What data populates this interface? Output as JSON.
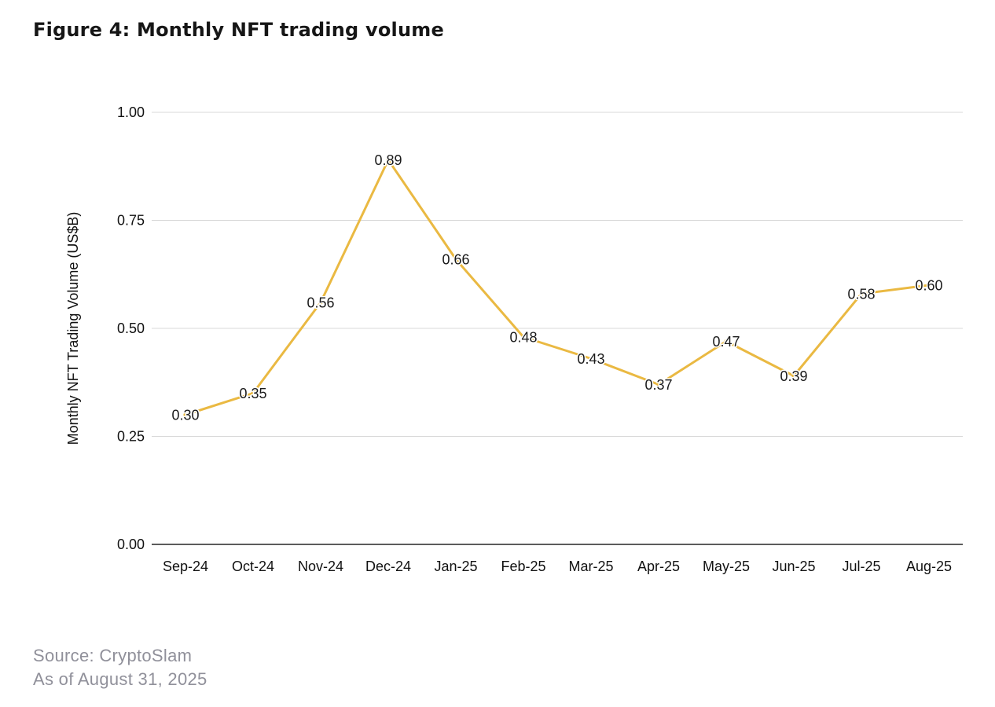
{
  "title": "Figure 4: Monthly NFT trading volume",
  "source": {
    "line1": "Source: CryptoSlam",
    "line2": "As of August 31, 2025"
  },
  "chart_data": {
    "type": "line",
    "title": "Figure 4: Monthly NFT trading volume",
    "categories": [
      "Sep-24",
      "Oct-24",
      "Nov-24",
      "Dec-24",
      "Jan-25",
      "Feb-25",
      "Mar-25",
      "Apr-25",
      "May-25",
      "Jun-25",
      "Jul-25",
      "Aug-25"
    ],
    "values": [
      0.3,
      0.35,
      0.56,
      0.89,
      0.66,
      0.48,
      0.43,
      0.37,
      0.47,
      0.39,
      0.58,
      0.6
    ],
    "data_labels": [
      "0.30",
      "0.35",
      "0.56",
      "0.89",
      "0.66",
      "0.48",
      "0.43",
      "0.37",
      "0.47",
      "0.39",
      "0.58",
      "0.60"
    ],
    "xlabel": "",
    "ylabel": "Monthly NFT Trading Volume (US$B)",
    "ylim": [
      0.0,
      1.0
    ],
    "yticks": [
      0.0,
      0.25,
      0.5,
      0.75,
      1.0
    ],
    "ytick_labels": [
      "0.00",
      "0.25",
      "0.50",
      "0.75",
      "1.00"
    ],
    "grid": true,
    "legend_position": "none",
    "line_color": "#EAB942",
    "marker_color": "#EAB942",
    "grid_color": "#D8D8D8",
    "axis_color": "#262626",
    "label_color": "#1a1a1a"
  }
}
